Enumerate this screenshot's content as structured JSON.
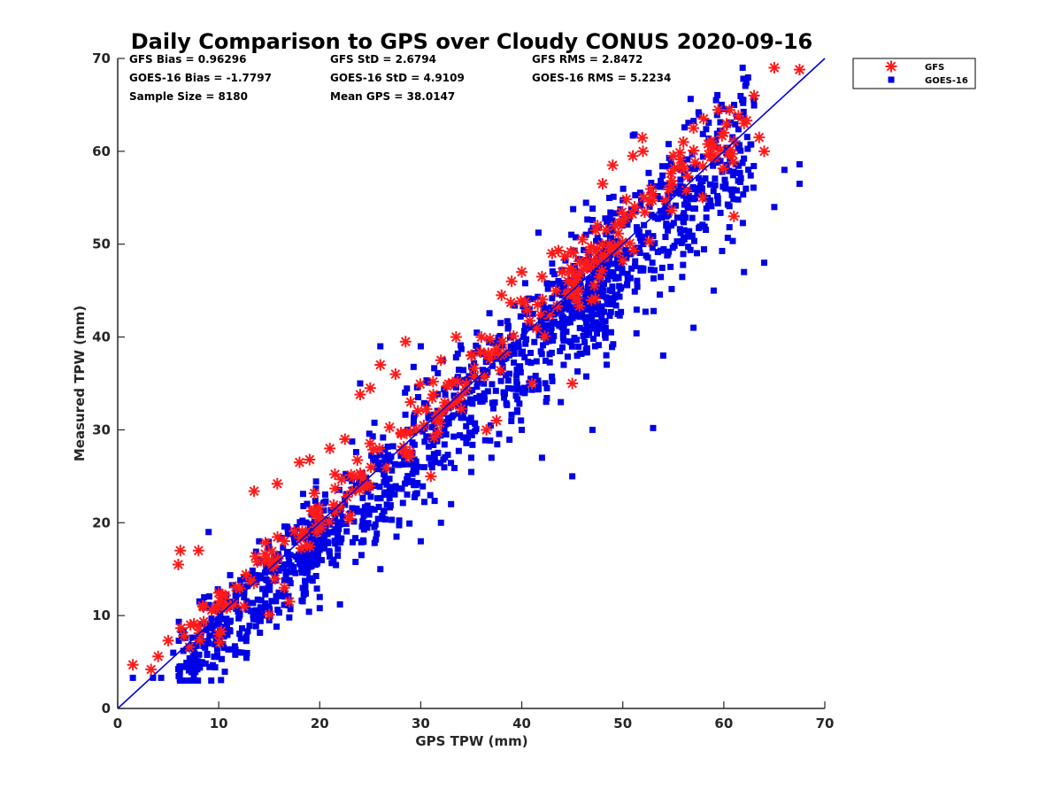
{
  "chart_data": {
    "type": "scatter",
    "title": "Daily Comparison to GPS over Cloudy CONUS 2020-09-16",
    "xlabel": "GPS TPW (mm)",
    "ylabel": "Measured TPW (mm)",
    "xlim": [
      0,
      70
    ],
    "ylim": [
      0,
      70
    ],
    "xticks": [
      0,
      10,
      20,
      30,
      40,
      50,
      60,
      70
    ],
    "yticks": [
      0,
      10,
      20,
      30,
      40,
      50,
      60,
      70
    ],
    "grid": false,
    "legend_position": "outside-top-right",
    "reference_line": {
      "name": "1:1",
      "x": [
        0,
        70
      ],
      "y": [
        0,
        70
      ],
      "color": "#0000dd"
    },
    "stats": [
      {
        "label": "GFS Bias = 0.96296"
      },
      {
        "label": "GFS StD = 2.6794"
      },
      {
        "label": "GFS RMS = 2.8472"
      },
      {
        "label": "GOES-16 Bias = -1.7797"
      },
      {
        "label": "GOES-16 StD = 4.9109"
      },
      {
        "label": "GOES-16 RMS = 5.2234"
      },
      {
        "label": "Sample Size = 8180"
      },
      {
        "label": "Mean GPS = 38.0147"
      }
    ],
    "series": [
      {
        "name": "GFS",
        "marker": "asterisk",
        "color": "#ff1a1a",
        "description": "approx. y = x + 0.96 with std 2.68 mm",
        "points": [
          [
            1.5,
            4.7
          ],
          [
            3.3,
            4.2
          ],
          [
            4.0,
            5.6
          ],
          [
            5.0,
            7.3
          ],
          [
            6.0,
            15.5
          ],
          [
            6.2,
            17.0
          ],
          [
            7.2,
            9.0
          ],
          [
            8.0,
            17.0
          ],
          [
            10.0,
            8.0
          ],
          [
            12.5,
            11.0
          ],
          [
            13.5,
            23.4
          ],
          [
            15.0,
            10.1
          ],
          [
            15.8,
            24.2
          ],
          [
            16.5,
            13.0
          ],
          [
            17.0,
            11.5
          ],
          [
            18.0,
            26.5
          ],
          [
            19.0,
            26.8
          ],
          [
            21.0,
            28.0
          ],
          [
            22.5,
            29.0
          ],
          [
            24.0,
            33.8
          ],
          [
            25.0,
            34.5
          ],
          [
            26.0,
            37.0
          ],
          [
            27.5,
            36.0
          ],
          [
            28.5,
            39.5
          ],
          [
            29.0,
            33.0
          ],
          [
            31.0,
            25.0
          ],
          [
            32.0,
            37.5
          ],
          [
            33.5,
            40.0
          ],
          [
            35.0,
            38.0
          ],
          [
            36.0,
            40.0
          ],
          [
            36.5,
            30.0
          ],
          [
            37.5,
            31.0
          ],
          [
            38.0,
            44.5
          ],
          [
            39.0,
            46.0
          ],
          [
            40.0,
            47.0
          ],
          [
            41.0,
            35.0
          ],
          [
            42.0,
            46.5
          ],
          [
            43.0,
            49.0
          ],
          [
            44.0,
            47.0
          ],
          [
            45.0,
            35.0
          ],
          [
            46.0,
            50.5
          ],
          [
            47.5,
            52.0
          ],
          [
            48.0,
            56.5
          ],
          [
            49.0,
            58.5
          ],
          [
            51.0,
            59.5
          ],
          [
            52.0,
            60.0
          ],
          [
            55.0,
            59.5
          ],
          [
            56.0,
            61.0
          ],
          [
            57.0,
            62.5
          ],
          [
            58.0,
            63.5
          ],
          [
            59.0,
            60.5
          ],
          [
            60.0,
            62.0
          ],
          [
            61.0,
            53.0
          ],
          [
            62.0,
            63.0
          ],
          [
            63.0,
            66.0
          ],
          [
            63.5,
            61.5
          ],
          [
            64.0,
            60.0
          ],
          [
            65.0,
            69.0
          ],
          [
            67.5,
            68.8
          ]
        ]
      },
      {
        "name": "GOES-16",
        "marker": "square",
        "color": "#0000e6",
        "description": "approx. y = x - 1.78 with std 4.91 mm",
        "points": [
          [
            1.5,
            3.3
          ],
          [
            3.5,
            3.3
          ],
          [
            4.3,
            3.3
          ],
          [
            5.5,
            6.0
          ],
          [
            6.5,
            6.2
          ],
          [
            7.5,
            6.5
          ],
          [
            9.0,
            7.0
          ],
          [
            11.0,
            11.5
          ],
          [
            15.0,
            9.5
          ],
          [
            20.0,
            10.8
          ],
          [
            22.0,
            11.2
          ],
          [
            20.0,
            12.0
          ],
          [
            23.0,
            21.0
          ],
          [
            26.0,
            15.0
          ],
          [
            30.0,
            18.0
          ],
          [
            32.0,
            20.0
          ],
          [
            33.0,
            22.0
          ],
          [
            35.0,
            27.0
          ],
          [
            37.0,
            27.0
          ],
          [
            40.0,
            30.0
          ],
          [
            42.0,
            27.0
          ],
          [
            45.0,
            25.0
          ],
          [
            47.0,
            30.0
          ],
          [
            53.0,
            30.2
          ],
          [
            54.0,
            38.0
          ],
          [
            57.0,
            41.0
          ],
          [
            59.0,
            45.0
          ],
          [
            62.0,
            47.0
          ],
          [
            64.0,
            48.0
          ],
          [
            65.0,
            54.0
          ],
          [
            66.0,
            58.0
          ],
          [
            67.5,
            58.6
          ],
          [
            67.5,
            56.5
          ],
          [
            57.5,
            64.2
          ],
          [
            51.0,
            61.7
          ],
          [
            30.0,
            39.0
          ],
          [
            26.0,
            39.0
          ],
          [
            24.0,
            35.0
          ],
          [
            14.0,
            18.0
          ],
          [
            9.0,
            19.0
          ]
        ]
      }
    ]
  }
}
